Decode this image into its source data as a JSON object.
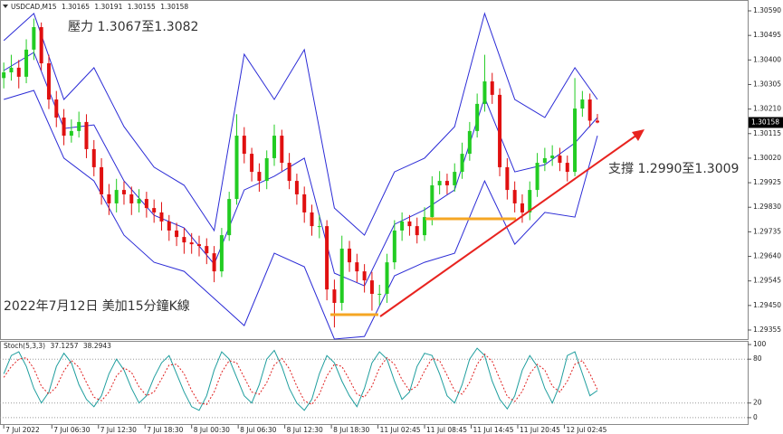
{
  "chart_data": {
    "type": "candlestick",
    "symbol": "USDCAD,M15",
    "xlim": [
      -0.5,
      99
    ],
    "xticks": [
      {
        "value": 0,
        "label": "7 Jul 2022"
      },
      {
        "value": 6.4,
        "label": "7 Jul 06:30"
      },
      {
        "value": 12.6,
        "label": "7 Jul 12:30"
      },
      {
        "value": 18.8,
        "label": "7 Jul 18:30"
      },
      {
        "value": 25,
        "label": "8 Jul 00:30"
      },
      {
        "value": 31.2,
        "label": "8 Jul 06:30"
      },
      {
        "value": 37.4,
        "label": "8 Jul 12:30"
      },
      {
        "value": 43.6,
        "label": "8 Jul 18:30"
      },
      {
        "value": 49.8,
        "label": "11 Jul 02:45"
      },
      {
        "value": 56,
        "label": "11 Jul 08:45"
      },
      {
        "value": 62.2,
        "label": "11 Jul 14:45"
      },
      {
        "value": 68.4,
        "label": "11 Jul 20:45"
      },
      {
        "value": 74.6,
        "label": "12 Jul 02:45"
      }
    ],
    "ylim": [
      1.2932,
      1.30632
    ],
    "yticks": [
      {
        "value": 1.3059,
        "label": "1.30590"
      },
      1.30495,
      {
        "value": 1.304,
        "label": "1.30400"
      },
      1.30305,
      {
        "value": 1.3021,
        "label": "1.30210"
      },
      1.30115,
      {
        "value": 1.3002,
        "label": "1.30020"
      },
      1.29925,
      {
        "value": 1.2983,
        "label": "1.29830"
      },
      1.29735,
      {
        "value": 1.2964,
        "label": "1.29640"
      },
      1.29545,
      {
        "value": 1.2945,
        "label": "1.29450"
      },
      1.29355
    ],
    "up_color": "#22cc22",
    "down_color": "#e01010",
    "candles": {
      "open": [
        1.3033,
        1.30352,
        1.3037,
        1.30335,
        1.3044,
        1.30527,
        1.30387,
        1.30247,
        1.30177,
        1.30107,
        1.30125,
        1.3016,
        1.30055,
        1.29985,
        1.2988,
        1.29845,
        1.29897,
        1.2988,
        1.29845,
        1.29862,
        1.29827,
        1.2981,
        1.29775,
        1.2974,
        1.29715,
        1.29694,
        1.29687,
        1.2968,
        1.29652,
        1.29582,
        1.29722,
        1.29862,
        1.30107,
        1.30037,
        1.29967,
        1.29932,
        1.3002,
        1.30107,
        1.30002,
        1.29932,
        1.2988,
        1.2981,
        1.29757,
        1.29757,
        1.29512,
        1.2946,
        1.2967,
        1.29617,
        1.29582,
        1.29547,
        1.29495,
        1.29495,
        1.29617,
        1.2974,
        1.29775,
        1.29757,
        1.29722,
        1.29792,
        1.29915,
        1.29932,
        1.29915,
        1.29967,
        1.30037,
        1.30125,
        1.3023,
        1.30317,
        1.30265,
        1.29985,
        1.29897,
        1.29845,
        1.2981,
        1.29897,
        1.30002,
        1.3002,
        1.3003,
        1.30002,
        1.29967,
        1.30212,
        1.30247,
        1.30165
      ],
      "high": [
        1.3039,
        1.3042,
        1.304,
        1.3048,
        1.3056,
        1.30545,
        1.3042,
        1.3028,
        1.3021,
        1.3017,
        1.302,
        1.3019,
        1.3009,
        1.3002,
        1.2992,
        1.2994,
        1.2993,
        1.2991,
        1.299,
        1.2989,
        1.2986,
        1.2985,
        1.298,
        1.2977,
        1.2975,
        1.2973,
        1.2972,
        1.2971,
        1.2968,
        1.2975,
        1.2989,
        1.3019,
        1.3014,
        1.3006,
        1.3,
        1.3005,
        1.3015,
        1.3013,
        1.3004,
        1.2996,
        1.2991,
        1.2984,
        1.298,
        1.2978,
        1.2955,
        1.2972,
        1.297,
        1.2965,
        1.2961,
        1.2958,
        1.2953,
        1.2965,
        1.2978,
        1.2981,
        1.298,
        1.2979,
        1.2983,
        1.2995,
        1.2997,
        1.2996,
        1.3,
        1.3008,
        1.3016,
        1.3027,
        1.3042,
        1.3035,
        1.3029,
        1.3002,
        1.2993,
        1.2988,
        1.2993,
        1.3004,
        1.3006,
        1.3007,
        1.3006,
        1.3003,
        1.3033,
        1.3028,
        1.3027,
        1.30191
      ],
      "low": [
        1.3029,
        1.3032,
        1.3029,
        1.3031,
        1.304,
        1.3036,
        1.3021,
        1.3014,
        1.3007,
        1.3008,
        1.301,
        1.3002,
        1.2995,
        1.2984,
        1.298,
        1.2981,
        1.2984,
        1.298,
        1.2981,
        1.2979,
        1.2977,
        1.2974,
        1.297,
        1.2968,
        1.2965,
        1.2965,
        1.2964,
        1.2961,
        1.2954,
        1.2956,
        1.297,
        1.2984,
        1.3,
        1.2993,
        1.2989,
        1.299,
        1.2999,
        1.2997,
        1.299,
        1.2984,
        1.2977,
        1.2972,
        1.2971,
        1.2947,
        1.29365,
        1.2943,
        1.2958,
        1.2954,
        1.295,
        1.2943,
        1.2945,
        1.2946,
        1.2959,
        1.297,
        1.2972,
        1.2969,
        1.297,
        1.2976,
        1.2988,
        1.2988,
        1.2989,
        1.2994,
        1.3001,
        1.301,
        1.302,
        1.3023,
        1.2995,
        1.2986,
        1.2981,
        1.2977,
        1.2978,
        1.2987,
        1.2997,
        1.2999,
        1.2997,
        1.2993,
        1.2995,
        1.3018,
        1.3014,
        1.30155
      ],
      "close": [
        1.30352,
        1.3037,
        1.30335,
        1.3044,
        1.30527,
        1.30387,
        1.30247,
        1.30177,
        1.30107,
        1.30125,
        1.3016,
        1.30055,
        1.29985,
        1.2988,
        1.29845,
        1.29897,
        1.2988,
        1.29845,
        1.29862,
        1.29827,
        1.2981,
        1.29775,
        1.2974,
        1.29715,
        1.29694,
        1.29687,
        1.2968,
        1.29652,
        1.29582,
        1.29722,
        1.29862,
        1.30107,
        1.30037,
        1.29967,
        1.29932,
        1.3002,
        1.30107,
        1.30002,
        1.29932,
        1.2988,
        1.2981,
        1.29757,
        1.29757,
        1.29512,
        1.2946,
        1.2967,
        1.29617,
        1.29582,
        1.29547,
        1.29495,
        1.29495,
        1.29617,
        1.2974,
        1.29775,
        1.29757,
        1.29722,
        1.29792,
        1.29915,
        1.29932,
        1.29915,
        1.29967,
        1.30037,
        1.30125,
        1.3023,
        1.30317,
        1.30265,
        1.29985,
        1.29897,
        1.29845,
        1.2981,
        1.29897,
        1.30002,
        1.3002,
        1.3003,
        1.30002,
        1.29967,
        1.30212,
        1.30247,
        1.30165,
        1.30158
      ]
    },
    "bands": {
      "color": "#2b2bd6",
      "x": [
        0,
        4,
        8,
        12,
        16,
        20,
        24,
        28,
        32,
        36,
        40,
        44,
        48,
        52,
        56,
        60,
        64,
        68,
        72,
        76,
        79
      ],
      "upper": [
        1.30475,
        1.3058,
        1.30247,
        1.3037,
        1.30142,
        1.29985,
        1.29915,
        1.2974,
        1.30422,
        1.30247,
        1.3044,
        1.29827,
        1.29722,
        1.29967,
        1.3002,
        1.30142,
        1.3058,
        1.30247,
        1.30177,
        1.3037,
        1.30247
      ],
      "middle": [
        1.30359,
        1.30429,
        1.30135,
        1.30149,
        1.29932,
        1.29799,
        1.2975,
        1.2961,
        1.29897,
        1.2995,
        1.3002,
        1.29575,
        1.29526,
        1.29764,
        1.2982,
        1.29897,
        1.30254,
        1.29967,
        1.29995,
        1.30079,
        1.30177
      ],
      "lower": [
        1.30247,
        1.30282,
        1.3002,
        1.29932,
        1.29722,
        1.29617,
        1.29582,
        1.29477,
        1.29372,
        1.29652,
        1.296,
        1.2932,
        1.2933,
        1.29565,
        1.29617,
        1.29652,
        1.29932,
        1.29687,
        1.2981,
        1.29792,
        1.30107
      ]
    },
    "annotations": [
      "壓力 1.3067至1.3082",
      "支撐 1.2990至1.3009",
      "2022年7月12日 美加15分鐘K線"
    ],
    "oscillator": {
      "title": "Stoch(5,3,3)",
      "ylim": [
        -10,
        105
      ],
      "yticks": [
        100,
        80,
        20,
        0
      ],
      "main": {
        "color": "#1f9e9e",
        "values": [
          60,
          85,
          90,
          70,
          40,
          20,
          35,
          70,
          88,
          75,
          45,
          25,
          15,
          30,
          60,
          80,
          65,
          40,
          20,
          30,
          55,
          75,
          85,
          60,
          35,
          15,
          10,
          30,
          65,
          90,
          80,
          55,
          30,
          20,
          45,
          80,
          92,
          70,
          40,
          20,
          10,
          25,
          60,
          85,
          75,
          50,
          30,
          15,
          40,
          75,
          90,
          80,
          50,
          25,
          35,
          70,
          88,
          85,
          60,
          30,
          20,
          45,
          80,
          95,
          85,
          50,
          25,
          12,
          30,
          65,
          85,
          70,
          40,
          20,
          45,
          85,
          90,
          60,
          30,
          37.1257
        ]
      },
      "signal": {
        "color": "#e02020",
        "values": [
          55,
          70,
          80,
          82,
          67,
          43,
          32,
          42,
          64,
          78,
          69,
          48,
          28,
          23,
          35,
          57,
          68,
          62,
          42,
          30,
          35,
          53,
          72,
          73,
          60,
          37,
          20,
          18,
          35,
          62,
          78,
          75,
          55,
          35,
          32,
          48,
          72,
          81,
          67,
          43,
          23,
          18,
          32,
          57,
          73,
          70,
          52,
          32,
          28,
          43,
          68,
          82,
          73,
          52,
          37,
          43,
          64,
          81,
          78,
          58,
          37,
          32,
          48,
          73,
          87,
          77,
          53,
          29,
          22,
          36,
          60,
          73,
          65,
          43,
          35,
          50,
          73,
          78,
          60,
          38.2943
        ]
      }
    }
  }
}
